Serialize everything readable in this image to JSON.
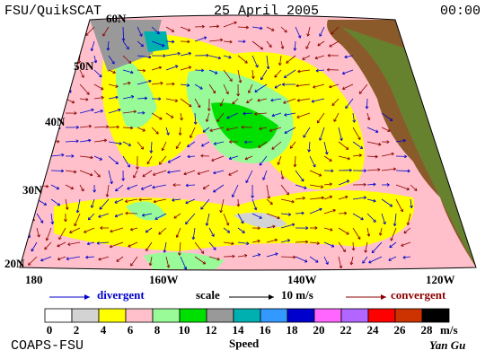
{
  "header": {
    "source": "FSU/QuikSCAT",
    "date": "25 April 2005",
    "time": "00:00"
  },
  "map": {
    "lat_labels": [
      "60N",
      "50N",
      "40N",
      "30N",
      "20N"
    ],
    "lon_labels": [
      "180",
      "160W",
      "140W",
      "120W"
    ]
  },
  "legend": {
    "divergent": "divergent",
    "scale": "scale",
    "scale_value": "10 m/s",
    "convergent": "convergent",
    "colorbar": {
      "title": "Speed",
      "unit": "m/s",
      "labels": [
        0,
        2,
        4,
        6,
        8,
        10,
        12,
        14,
        16,
        18,
        20,
        22,
        24,
        26,
        28
      ],
      "colors": [
        "#ffffff",
        "#d3d3d3",
        "#ffff00",
        "#ffc0cb",
        "#98fb98",
        "#00e000",
        "#999999",
        "#00b0b0",
        "#3399ff",
        "#0000cc",
        "#ff66ff",
        "#b266ff",
        "#ff0000",
        "#cc3300",
        "#000000"
      ]
    }
  },
  "footer": {
    "left": "COAPS-FSU",
    "right": "Yan Gu"
  }
}
